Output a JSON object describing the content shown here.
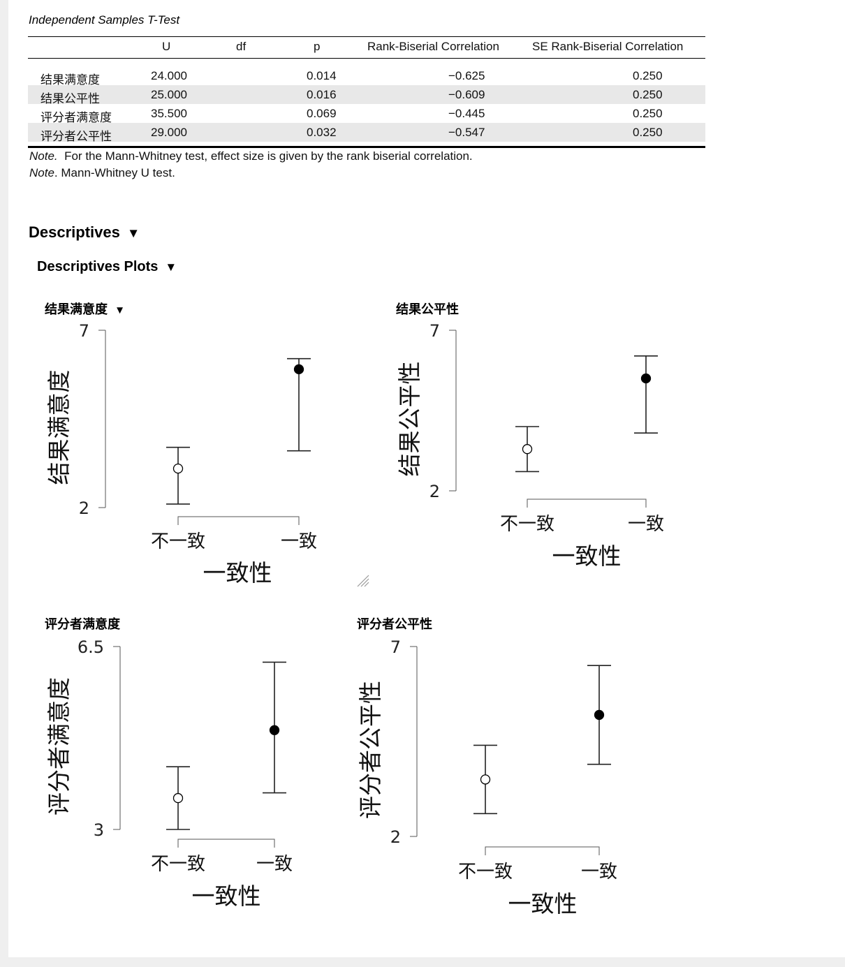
{
  "table": {
    "caption": "Independent Samples T-Test",
    "headers": [
      "",
      "U",
      "df",
      "p",
      "Rank-Biserial Correlation",
      "SE Rank-Biserial Correlation"
    ],
    "rows": [
      {
        "label": "结果满意度",
        "U": "24.000",
        "df": "",
        "p": "0.014",
        "rbc": "−0.625",
        "se": "0.250",
        "shaded": false
      },
      {
        "label": "结果公平性",
        "U": "25.000",
        "df": "",
        "p": "0.016",
        "rbc": "−0.609",
        "se": "0.250",
        "shaded": true
      },
      {
        "label": "评分者满意度",
        "U": "35.500",
        "df": "",
        "p": "0.069",
        "rbc": "−0.445",
        "se": "0.250",
        "shaded": false
      },
      {
        "label": "评分者公平性",
        "U": "29.000",
        "df": "",
        "p": "0.032",
        "rbc": "−0.547",
        "se": "0.250",
        "shaded": true
      }
    ],
    "note1_prefix": "Note.",
    "note1_text": "For the Mann-Whitney test, effect size is given by the rank biserial correlation.",
    "note2_prefix": "Note",
    "note2_text": ". Mann-Whitney U test."
  },
  "descriptives": {
    "title": "Descriptives",
    "toggle_icon": "triangle-down-icon",
    "plots_title": "Descriptives Plots",
    "plots_toggle_icon": "triangle-down-icon"
  },
  "chart_data": [
    {
      "type": "scatter",
      "title": "结果满意度",
      "ylabel": "结果满意度",
      "xlabel": "一致性",
      "categories": [
        "不一致",
        "一致"
      ],
      "yticks": [
        "7",
        "2"
      ],
      "ylim": [
        2,
        7
      ],
      "mean": [
        3.1,
        5.9
      ],
      "ci_lower": [
        2.1,
        3.6
      ],
      "ci_upper": [
        3.7,
        6.2
      ],
      "collapsible": true
    },
    {
      "type": "scatter",
      "title": "结果公平性",
      "ylabel": "结果公平性",
      "xlabel": "一致性",
      "categories": [
        "不一致",
        "一致"
      ],
      "yticks": [
        "7",
        "2"
      ],
      "ylim": [
        2,
        7
      ],
      "mean": [
        3.3,
        5.5
      ],
      "ci_lower": [
        2.6,
        3.8
      ],
      "ci_upper": [
        4.0,
        6.2
      ],
      "collapsible": false
    },
    {
      "type": "scatter",
      "title": "评分者满意度",
      "ylabel": "评分者满意度",
      "xlabel": "一致性",
      "categories": [
        "不一致",
        "一致"
      ],
      "yticks": [
        "6.5",
        "3"
      ],
      "ylim": [
        3,
        6.5
      ],
      "mean": [
        3.6,
        4.9
      ],
      "ci_lower": [
        3.0,
        3.7
      ],
      "ci_upper": [
        4.2,
        6.2
      ],
      "collapsible": false
    },
    {
      "type": "scatter",
      "title": "评分者公平性",
      "ylabel": "评分者公平性",
      "xlabel": "一致性",
      "categories": [
        "不一致",
        "一致"
      ],
      "yticks": [
        "7",
        "2"
      ],
      "ylim": [
        2,
        7
      ],
      "mean": [
        3.5,
        5.2
      ],
      "ci_lower": [
        2.6,
        3.9
      ],
      "ci_upper": [
        4.4,
        6.5
      ],
      "collapsible": false
    }
  ],
  "colors": {
    "background": "#efefef",
    "panel": "#ffffff",
    "row_shade": "#e8e8e8"
  }
}
